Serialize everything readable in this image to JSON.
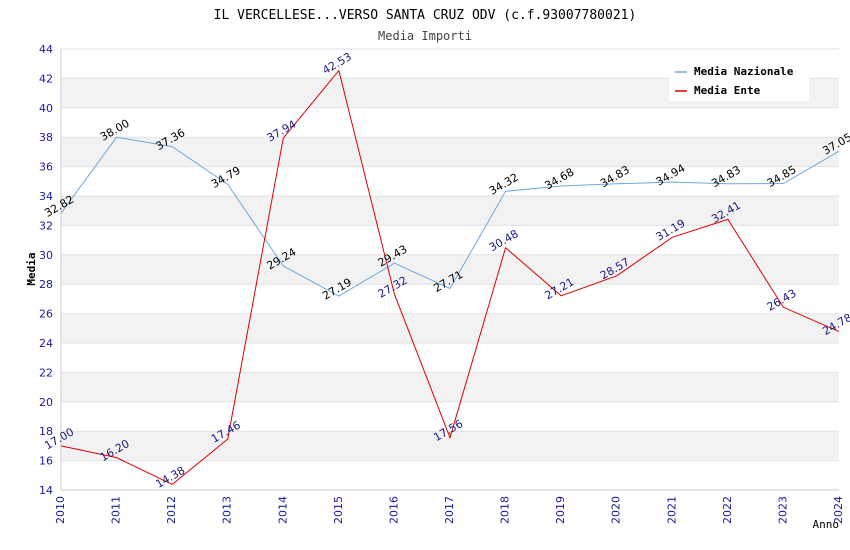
{
  "chart_data": {
    "type": "line",
    "title": "IL VERCELLESE...VERSO SANTA CRUZ ODV (c.f.93007780021)",
    "subtitle": "Media Importi",
    "xlabel": "Anno",
    "ylabel": "Media",
    "ylim": [
      14,
      44
    ],
    "ytick_step": 2,
    "categories": [
      "2010",
      "2011",
      "2012",
      "2013",
      "2014",
      "2015",
      "2016",
      "2017",
      "2018",
      "2019",
      "2020",
      "2021",
      "2022",
      "2023",
      "2024"
    ],
    "series": [
      {
        "name": "Media Nazionale",
        "color": "#6fa8dc",
        "values": [
          32.82,
          38.0,
          37.36,
          34.79,
          29.24,
          27.19,
          29.43,
          27.71,
          34.32,
          34.68,
          34.83,
          34.94,
          34.83,
          34.85,
          37.05
        ],
        "labels": [
          "32.82",
          "38.00",
          "37.36",
          "34.79",
          "29.24",
          "27.19",
          "29.43",
          "27.71",
          "34.32",
          "34.68",
          "34.83",
          "34.94",
          "34.83",
          "34.85",
          "37.05"
        ]
      },
      {
        "name": "Media Ente",
        "color": "#dd0000",
        "values": [
          17.0,
          16.2,
          14.38,
          17.46,
          37.94,
          42.53,
          27.32,
          17.56,
          30.48,
          27.21,
          28.57,
          31.19,
          32.41,
          26.43,
          24.78
        ],
        "labels": [
          "17.00",
          "16.20",
          "14.38",
          "17.46",
          "37.94",
          "42.53",
          "27.32",
          "17.56",
          "30.48",
          "27.21",
          "28.57",
          "31.19",
          "32.41",
          "26.43",
          "24.78"
        ]
      }
    ],
    "legend_position": "top-right",
    "grid": true
  }
}
